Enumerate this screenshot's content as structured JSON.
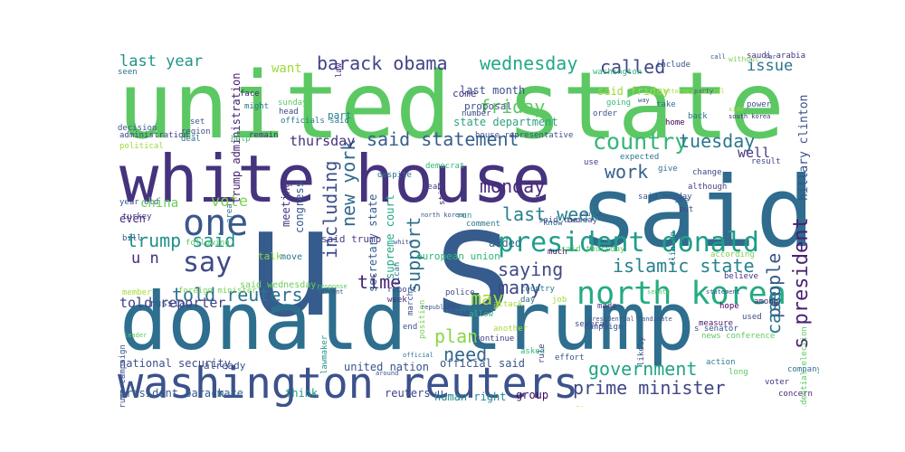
{
  "wordcloud": {
    "background": "#ffffff",
    "words": [
      {
        "text": "united state",
        "color": "#5cc863"
      },
      {
        "text": "white house",
        "color": "#46337e"
      },
      {
        "text": "said",
        "color": "#2f6c8e"
      },
      {
        "text": "u s",
        "color": "#365c8d"
      },
      {
        "text": "donald trump",
        "color": "#2e6e8e"
      },
      {
        "text": "washington reuters",
        "color": "#3b528b"
      },
      {
        "text": "north korea",
        "color": "#25ab82"
      },
      {
        "text": "president donald",
        "color": "#1f9e89"
      },
      {
        "text": "country",
        "color": "#35b779"
      },
      {
        "text": "one",
        "color": "#39568c"
      },
      {
        "text": "say",
        "color": "#3e4a89"
      },
      {
        "text": "new york",
        "color": "#306a8e"
      },
      {
        "text": "including",
        "color": "#3d4e8a"
      },
      {
        "text": "said statement",
        "color": "#355f8d"
      },
      {
        "text": "islamic state",
        "color": "#26828e"
      },
      {
        "text": "government",
        "color": "#20a386"
      },
      {
        "text": "prime minister",
        "color": "#404688"
      },
      {
        "text": "trump said",
        "color": "#21918c"
      },
      {
        "text": "told reuters",
        "color": "#2c728e"
      },
      {
        "text": "wednesday",
        "color": "#22a884"
      },
      {
        "text": "tuesday",
        "color": "#2a788e"
      },
      {
        "text": "barack obama",
        "color": "#404387"
      },
      {
        "text": "called",
        "color": "#3f4788"
      },
      {
        "text": "friday",
        "color": "#5ec962"
      },
      {
        "text": "monday",
        "color": "#482878"
      },
      {
        "text": "last week",
        "color": "#27808e"
      },
      {
        "text": "saying",
        "color": "#3e4989"
      },
      {
        "text": "work",
        "color": "#34608d"
      },
      {
        "text": "time",
        "color": "#482576"
      },
      {
        "text": "support",
        "color": "#2d708e"
      },
      {
        "text": "may",
        "color": "#a5db36"
      },
      {
        "text": "many",
        "color": "#3f4889"
      },
      {
        "text": "plan",
        "color": "#8bd646"
      },
      {
        "text": "need",
        "color": "#31688e"
      },
      {
        "text": "people",
        "color": "#3a548c"
      },
      {
        "text": "case",
        "color": "#2a768e"
      },
      {
        "text": "s president",
        "color": "#481f70"
      },
      {
        "text": "last year",
        "color": "#1f958b"
      },
      {
        "text": "issue",
        "color": "#2c738e"
      },
      {
        "text": "vote",
        "color": "#7ad151"
      },
      {
        "text": "u n",
        "color": "#472d7b"
      },
      {
        "text": "thursday",
        "color": "#46307e"
      },
      {
        "text": "told reporter",
        "color": "#433e85"
      },
      {
        "text": "well",
        "color": "#453781"
      },
      {
        "text": "want",
        "color": "#a0da39"
      },
      {
        "text": "china",
        "color": "#6ccd5a"
      },
      {
        "text": "hillary clinton",
        "color": "#3b518b"
      },
      {
        "text": "trump administration",
        "color": "#482173"
      },
      {
        "text": "last month",
        "color": "#3c4f8a"
      },
      {
        "text": "said friday",
        "color": "#9bd93c"
      },
      {
        "text": "state department",
        "color": "#2ea37f"
      },
      {
        "text": "even",
        "color": "#472c7a"
      },
      {
        "text": "meeting",
        "color": "#453882"
      },
      {
        "text": "congress",
        "color": "#38588c"
      },
      {
        "text": "secretary state",
        "color": "#355e8d"
      },
      {
        "text": "supreme court",
        "color": "#21a685"
      },
      {
        "text": "added",
        "color": "#2f6b8e"
      },
      {
        "text": "united nation",
        "color": "#3a538b"
      },
      {
        "text": "reuters u",
        "color": "#414287"
      },
      {
        "text": "official said",
        "color": "#39558c"
      },
      {
        "text": "human right",
        "color": "#23898e"
      },
      {
        "text": "group",
        "color": "#46085c"
      },
      {
        "text": "president barack",
        "color": "#365d8d"
      },
      {
        "text": "national security",
        "color": "#3d4d8a"
      },
      {
        "text": "make",
        "color": "#34618d"
      },
      {
        "text": "think",
        "color": "#1f998a"
      },
      {
        "text": "already",
        "color": "#3c508b"
      },
      {
        "text": "said wednesday",
        "color": "#6ece58"
      },
      {
        "text": "talk",
        "color": "#8ed645"
      },
      {
        "text": "russia",
        "color": "#3b528b"
      },
      {
        "text": "move",
        "color": "#2b758e"
      },
      {
        "text": "law",
        "color": "#482071"
      },
      {
        "text": "european union",
        "color": "#32b67a"
      },
      {
        "text": "said trump",
        "color": "#4a3c86"
      },
      {
        "text": "come",
        "color": "#453581"
      },
      {
        "text": "part",
        "color": "#26818e"
      },
      {
        "text": "proposal",
        "color": "#3b518b"
      },
      {
        "text": "house representative",
        "color": "#3c4f8a"
      },
      {
        "text": "washington",
        "color": "#35b779"
      },
      {
        "text": "going",
        "color": "#3bbb75"
      },
      {
        "text": "take",
        "color": "#2d708e"
      },
      {
        "text": "order",
        "color": "#3a548c"
      },
      {
        "text": "use",
        "color": "#453581"
      },
      {
        "text": "expected",
        "color": "#2a788e"
      },
      {
        "text": "give",
        "color": "#2c728e"
      },
      {
        "text": "change",
        "color": "#3e4989"
      },
      {
        "text": "although",
        "color": "#424086"
      },
      {
        "text": "result",
        "color": "#3f4788"
      },
      {
        "text": "see",
        "color": "#34608d"
      },
      {
        "text": "put",
        "color": "#404688"
      },
      {
        "text": "according",
        "color": "#7ad151"
      },
      {
        "text": "believe",
        "color": "#46307e"
      },
      {
        "text": "hope",
        "color": "#440154"
      },
      {
        "text": "used",
        "color": "#3e4a89"
      },
      {
        "text": "among",
        "color": "#482878"
      },
      {
        "text": "measure",
        "color": "#481a6c"
      },
      {
        "text": "asked",
        "color": "#35b779"
      },
      {
        "text": "made",
        "color": "#433e85"
      },
      {
        "text": "several",
        "color": "#404387"
      },
      {
        "text": "job",
        "color": "#9fda3a"
      },
      {
        "text": "day",
        "color": "#2e6f8e"
      },
      {
        "text": "country",
        "color": "#2a788e"
      },
      {
        "text": "police",
        "color": "#3d4d8a"
      },
      {
        "text": "others",
        "color": "#2c738e"
      },
      {
        "text": "allow",
        "color": "#35b779"
      },
      {
        "text": "continue",
        "color": "#424186"
      },
      {
        "text": "end",
        "color": "#3a548c"
      },
      {
        "text": "week",
        "color": "#482475"
      },
      {
        "text": "report",
        "color": "#3e4a89"
      },
      {
        "text": "lead",
        "color": "#3f4788"
      },
      {
        "text": "democrat",
        "color": "#35b779"
      },
      {
        "text": "despite",
        "color": "#2c728e"
      },
      {
        "text": "still",
        "color": "#472d7b"
      },
      {
        "text": "run",
        "color": "#1fa088"
      },
      {
        "text": "comment",
        "color": "#2a788e"
      },
      {
        "text": "know",
        "color": "#34608d"
      },
      {
        "text": "two",
        "color": "#3f4788"
      },
      {
        "text": "clinton",
        "color": "#2c738e"
      },
      {
        "text": "much",
        "color": "#471063"
      },
      {
        "text": "another",
        "color": "#a8db34"
      },
      {
        "text": "rule",
        "color": "#433e85"
      },
      {
        "text": "effort",
        "color": "#3a548c"
      },
      {
        "text": "action",
        "color": "#27808e"
      },
      {
        "text": "company",
        "color": "#2c738e"
      },
      {
        "text": "voter",
        "color": "#453581"
      },
      {
        "text": "long",
        "color": "#5ec962"
      },
      {
        "text": "concern",
        "color": "#482576"
      },
      {
        "text": "first",
        "color": "#a8db34"
      },
      {
        "text": "likely",
        "color": "#3b528b"
      },
      {
        "text": "deal",
        "color": "#2c728e"
      },
      {
        "text": "help",
        "color": "#4ac16d"
      },
      {
        "text": "political",
        "color": "#9bd93c"
      },
      {
        "text": "set",
        "color": "#38598c"
      },
      {
        "text": "face",
        "color": "#482979"
      },
      {
        "text": "might",
        "color": "#2b748e"
      },
      {
        "text": "sunday",
        "color": "#5ec962"
      },
      {
        "text": "remain",
        "color": "#46327e"
      },
      {
        "text": "head",
        "color": "#3f4788"
      },
      {
        "text": "seen",
        "color": "#2c728e"
      },
      {
        "text": "decision",
        "color": "#3a548c"
      },
      {
        "text": "administration",
        "color": "#414487"
      },
      {
        "text": "region",
        "color": "#3b528b"
      },
      {
        "text": "officials said",
        "color": "#2a788e"
      },
      {
        "text": "saudi arabia",
        "color": "#46327e"
      },
      {
        "text": "number",
        "color": "#3f4788"
      },
      {
        "text": "include",
        "color": "#3b528b"
      },
      {
        "text": "home",
        "color": "#440154"
      },
      {
        "text": "back",
        "color": "#2c728e"
      },
      {
        "text": "power",
        "color": "#3b528b"
      },
      {
        "text": "without",
        "color": "#7ad151"
      },
      {
        "text": "attorney general",
        "color": "#a8db34"
      },
      {
        "text": "party",
        "color": "#3a548c"
      },
      {
        "text": "side",
        "color": "#a0da39"
      },
      {
        "text": "south korea",
        "color": "#46327e"
      },
      {
        "text": "said monday",
        "color": "#3b528b"
      },
      {
        "text": "said thursday",
        "color": "#5ec962"
      },
      {
        "text": "said tuesday",
        "color": "#3b528b"
      },
      {
        "text": "area",
        "color": "#2a788e"
      },
      {
        "text": "year old",
        "color": "#3a548c"
      },
      {
        "text": "turkey",
        "color": "#46327e"
      },
      {
        "text": "bill",
        "color": "#3b528b"
      },
      {
        "text": "following",
        "color": "#5ec962"
      },
      {
        "text": "foreign minister",
        "color": "#7ad151"
      },
      {
        "text": "member",
        "color": "#a8db34"
      },
      {
        "text": "trump campaign",
        "color": "#3b528b"
      },
      {
        "text": "lawmaker",
        "color": "#1f968b"
      },
      {
        "text": "position",
        "color": "#7ad151"
      },
      {
        "text": "s senator",
        "color": "#3b528b"
      },
      {
        "text": "news conference",
        "color": "#5ec962"
      },
      {
        "text": "presidential election",
        "color": "#5ec962"
      },
      {
        "text": "attack",
        "color": "#a0da39"
      },
      {
        "text": "march",
        "color": "#3b528b"
      },
      {
        "text": "american",
        "color": "#2c728e"
      },
      {
        "text": "campaign",
        "color": "#3b528b"
      },
      {
        "text": "percent",
        "color": "#3b528b"
      },
      {
        "text": "around",
        "color": "#3a548c"
      },
      {
        "text": "way",
        "color": "#3b528b"
      },
      {
        "text": "far",
        "color": "#3b528b"
      },
      {
        "text": "call",
        "color": "#3b528b"
      },
      {
        "text": "north korean",
        "color": "#3a548c"
      },
      {
        "text": "republican",
        "color": "#3b528b"
      },
      {
        "text": "response",
        "color": "#5ec962"
      },
      {
        "text": "leader",
        "color": "#5ec962"
      },
      {
        "text": "presidential candidate",
        "color": "#3b528b"
      },
      {
        "text": "official",
        "color": "#2c728e"
      },
      {
        "text": "senate",
        "color": "#5ec962"
      },
      {
        "text": "statement",
        "color": "#3b528b"
      },
      {
        "text": "white",
        "color": "#3b528b"
      },
      {
        "text": "source",
        "color": "#3b528b"
      }
    ]
  }
}
